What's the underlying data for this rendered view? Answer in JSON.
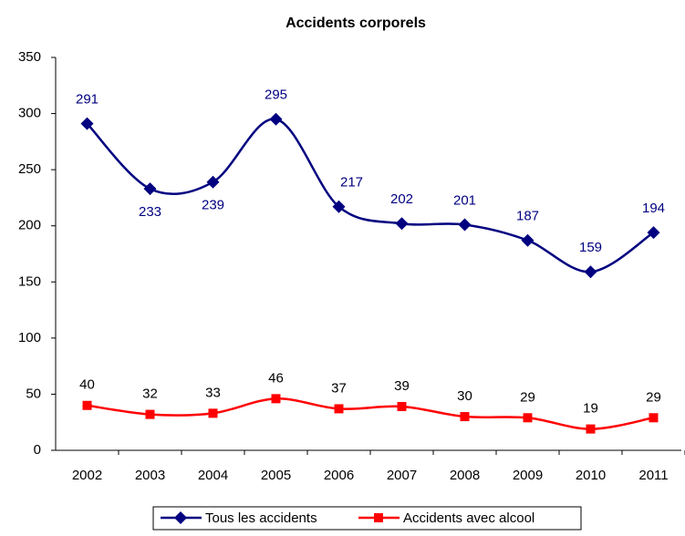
{
  "chart_data": {
    "type": "line",
    "title": "Accidents corporels",
    "categories": [
      "2002",
      "2003",
      "2004",
      "2005",
      "2006",
      "2007",
      "2008",
      "2009",
      "2010",
      "2011"
    ],
    "series": [
      {
        "name": "Tous les accidents",
        "color": "#000080",
        "values": [
          291,
          233,
          239,
          295,
          217,
          202,
          201,
          187,
          159,
          194
        ]
      },
      {
        "name": "Accidents avec alcool",
        "color": "#ff0000",
        "values": [
          40,
          32,
          33,
          46,
          37,
          39,
          30,
          29,
          19,
          29
        ]
      }
    ],
    "ylim": [
      0,
      350
    ],
    "yticks": [
      0,
      50,
      100,
      150,
      200,
      250,
      300,
      350
    ],
    "grid": false,
    "legend": "bottom"
  }
}
